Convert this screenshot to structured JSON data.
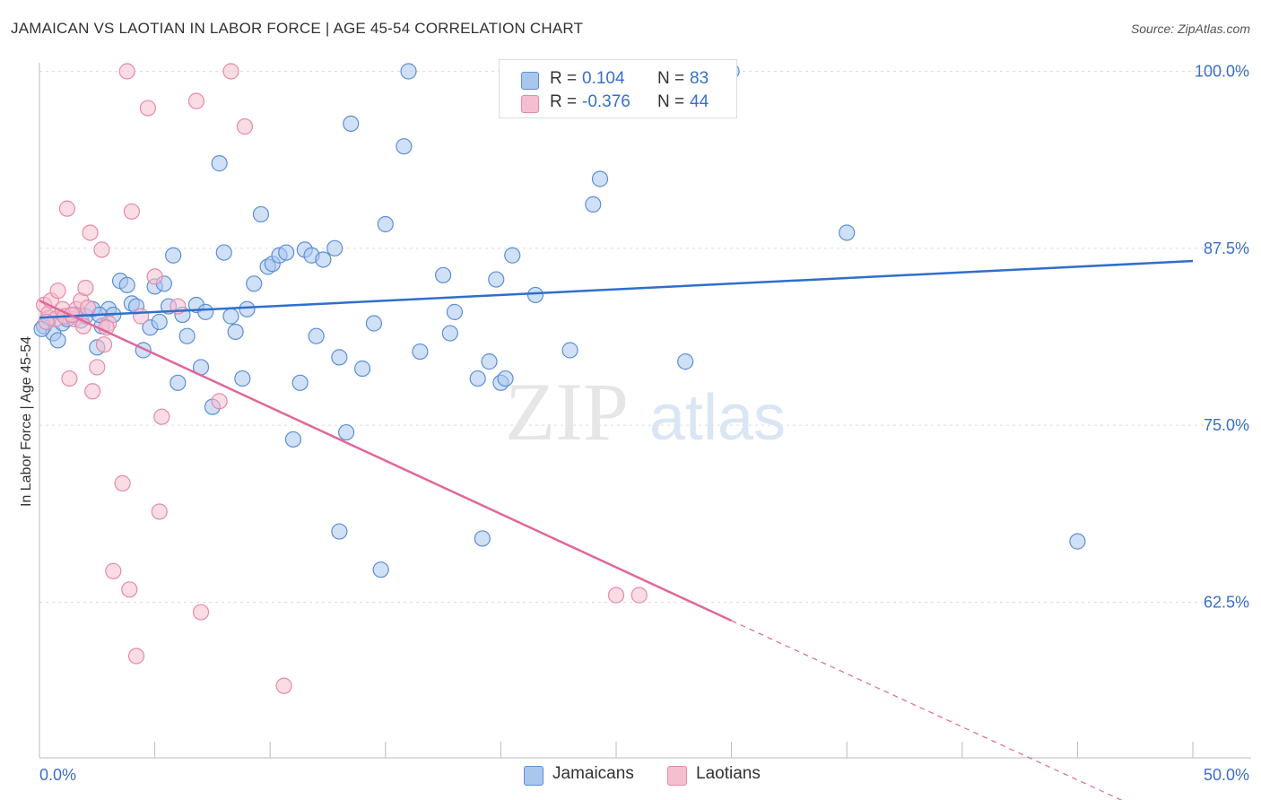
{
  "title": "JAMAICAN VS LAOTIAN IN LABOR FORCE | AGE 45-54 CORRELATION CHART",
  "source": "Source: ZipAtlas.com",
  "watermark": {
    "zip": "ZIP",
    "atlas": "atlas"
  },
  "colors": {
    "blue_fill": "#a9c6ee",
    "blue_stroke": "#5b8fd6",
    "blue_line": "#2f6fcc",
    "pink_fill": "#f6bfd0",
    "pink_stroke": "#e58aa8",
    "pink_line": "#e0679a",
    "axis_text": "#3a6fc8",
    "grid": "#dddddd"
  },
  "legend": {
    "r_label": "R =",
    "n_label": "N =",
    "rows": [
      {
        "series": "Jamaicans",
        "r": "0.104",
        "n": "83"
      },
      {
        "series": "Laotians",
        "r": "-0.376",
        "n": "44"
      }
    ]
  },
  "chart_data": {
    "type": "scatter",
    "title": "JAMAICAN VS LAOTIAN IN LABOR FORCE | AGE 45-54 CORRELATION CHART",
    "xlabel": "",
    "ylabel": "In Labor Force | Age 45-54",
    "xlim": [
      0,
      50
    ],
    "ylim": [
      52.5,
      101.5
    ],
    "x_tick_labels": [
      "0.0%",
      "50.0%"
    ],
    "y_ticks": [
      62.5,
      75.0,
      87.5,
      100.0
    ],
    "y_tick_labels": [
      "62.5%",
      "75.0%",
      "87.5%",
      "100.0%"
    ],
    "grid": true,
    "legend_position": "top-center",
    "series": [
      {
        "name": "Jamaicans",
        "color": "#a9c6ee",
        "trend": {
          "x0": 0,
          "y0": 82.6,
          "x1": 50,
          "y1": 86.6
        },
        "points": [
          [
            0.2,
            82.0
          ],
          [
            0.4,
            82.6
          ],
          [
            0.6,
            81.5
          ],
          [
            0.8,
            81.0
          ],
          [
            1.0,
            82.2
          ],
          [
            1.2,
            82.5
          ],
          [
            1.5,
            82.8
          ],
          [
            1.8,
            82.4
          ],
          [
            2.0,
            82.7
          ],
          [
            2.3,
            83.2
          ],
          [
            2.5,
            80.5
          ],
          [
            2.7,
            82.0
          ],
          [
            3.0,
            83.2
          ],
          [
            3.2,
            82.8
          ],
          [
            3.5,
            85.2
          ],
          [
            3.8,
            84.9
          ],
          [
            4.0,
            83.6
          ],
          [
            4.2,
            83.4
          ],
          [
            4.5,
            80.3
          ],
          [
            4.8,
            81.9
          ],
          [
            5.0,
            84.8
          ],
          [
            5.2,
            82.3
          ],
          [
            5.4,
            85.0
          ],
          [
            5.6,
            83.4
          ],
          [
            5.8,
            87.0
          ],
          [
            6.0,
            78.0
          ],
          [
            6.2,
            82.8
          ],
          [
            6.4,
            81.3
          ],
          [
            6.8,
            83.5
          ],
          [
            7.0,
            79.1
          ],
          [
            7.2,
            83.0
          ],
          [
            7.5,
            76.3
          ],
          [
            7.8,
            93.5
          ],
          [
            8.0,
            87.2
          ],
          [
            8.3,
            82.7
          ],
          [
            8.5,
            81.6
          ],
          [
            8.8,
            78.3
          ],
          [
            9.0,
            83.2
          ],
          [
            9.3,
            85.0
          ],
          [
            9.6,
            89.9
          ],
          [
            9.9,
            86.2
          ],
          [
            10.1,
            86.4
          ],
          [
            10.4,
            87.0
          ],
          [
            10.7,
            87.2
          ],
          [
            11.0,
            74.0
          ],
          [
            11.3,
            78.0
          ],
          [
            11.5,
            87.4
          ],
          [
            11.8,
            87.0
          ],
          [
            12.0,
            81.3
          ],
          [
            12.3,
            86.7
          ],
          [
            12.8,
            87.5
          ],
          [
            13.3,
            74.5
          ],
          [
            13.0,
            79.8
          ],
          [
            13.5,
            96.3
          ],
          [
            13.0,
            67.5
          ],
          [
            14.0,
            79.0
          ],
          [
            14.5,
            82.2
          ],
          [
            15.0,
            89.2
          ],
          [
            14.8,
            64.8
          ],
          [
            15.8,
            94.7
          ],
          [
            16.0,
            100.0
          ],
          [
            16.5,
            80.2
          ],
          [
            17.5,
            85.6
          ],
          [
            17.8,
            81.5
          ],
          [
            18.0,
            83.0
          ],
          [
            19.0,
            78.3
          ],
          [
            19.2,
            67.0
          ],
          [
            19.5,
            79.5
          ],
          [
            19.8,
            85.3
          ],
          [
            20.0,
            78.0
          ],
          [
            20.2,
            78.3
          ],
          [
            20.5,
            87.0
          ],
          [
            21.5,
            84.2
          ],
          [
            23.0,
            80.3
          ],
          [
            24.0,
            90.6
          ],
          [
            24.3,
            92.4
          ],
          [
            27.0,
            100.0
          ],
          [
            28.0,
            79.5
          ],
          [
            30.0,
            100.0
          ],
          [
            35.0,
            88.6
          ],
          [
            45.0,
            66.8
          ],
          [
            0.1,
            81.8
          ],
          [
            2.6,
            82.8
          ]
        ]
      },
      {
        "name": "Laotians",
        "color": "#f6bfd0",
        "trend": {
          "x0": 0,
          "y0": 83.8,
          "x1": 30,
          "y1": 61.2
        },
        "trend_dashed": {
          "x0": 30,
          "y0": 61.2,
          "x1": 50,
          "y1": 46.2
        },
        "points": [
          [
            0.2,
            83.5
          ],
          [
            0.4,
            82.9
          ],
          [
            0.5,
            83.8
          ],
          [
            0.7,
            82.5
          ],
          [
            0.8,
            84.5
          ],
          [
            1.0,
            83.2
          ],
          [
            1.1,
            82.7
          ],
          [
            1.2,
            90.3
          ],
          [
            1.3,
            78.3
          ],
          [
            1.5,
            82.5
          ],
          [
            1.6,
            83.2
          ],
          [
            1.8,
            83.8
          ],
          [
            1.9,
            82.0
          ],
          [
            2.0,
            84.7
          ],
          [
            2.1,
            83.3
          ],
          [
            2.2,
            88.6
          ],
          [
            2.3,
            77.4
          ],
          [
            2.5,
            79.1
          ],
          [
            2.7,
            87.4
          ],
          [
            2.8,
            80.7
          ],
          [
            3.0,
            82.2
          ],
          [
            3.2,
            64.7
          ],
          [
            3.6,
            70.9
          ],
          [
            3.8,
            100.0
          ],
          [
            3.9,
            63.4
          ],
          [
            4.0,
            90.1
          ],
          [
            4.2,
            58.7
          ],
          [
            4.4,
            82.7
          ],
          [
            4.7,
            97.4
          ],
          [
            5.0,
            85.5
          ],
          [
            5.2,
            68.9
          ],
          [
            5.3,
            75.6
          ],
          [
            6.0,
            83.4
          ],
          [
            6.8,
            97.9
          ],
          [
            7.0,
            61.8
          ],
          [
            7.8,
            76.7
          ],
          [
            8.3,
            100.0
          ],
          [
            8.9,
            96.1
          ],
          [
            10.6,
            56.6
          ],
          [
            25.0,
            63.0
          ],
          [
            26.0,
            63.0
          ],
          [
            0.3,
            82.3
          ],
          [
            1.4,
            82.8
          ],
          [
            2.9,
            81.9
          ]
        ]
      }
    ]
  }
}
